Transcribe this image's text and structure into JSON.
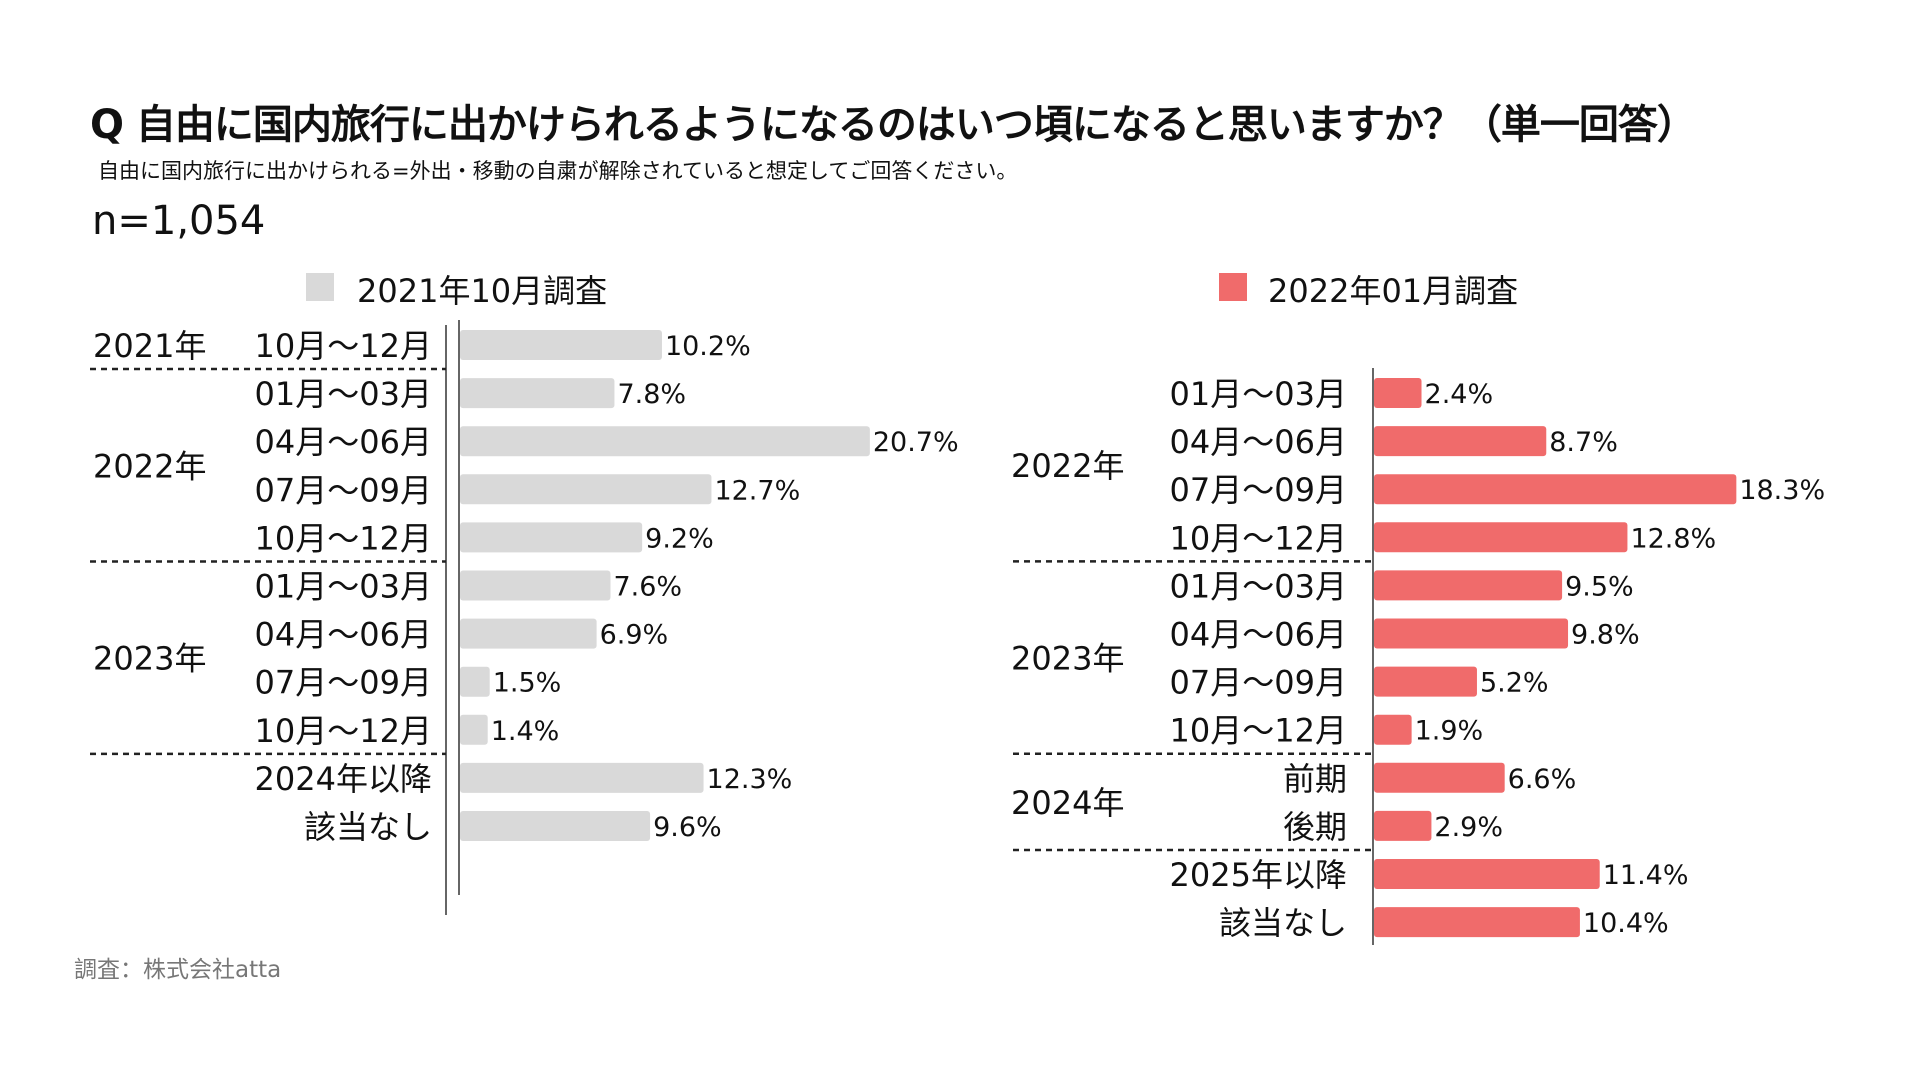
{
  "title": "Q 自由に国内旅行に出かけられるようになるのはいつ頃になると思いますか？（単一回答）",
  "subtitle": "自由に国内旅行に出かけられる=外出・移動の自粛が解除されていると想定してご回答ください。",
  "sample_size": "n=1,054",
  "footer": "調査：株式会社atta",
  "chart_data": [
    {
      "type": "bar",
      "orientation": "horizontal",
      "legend": "2021年10月調査",
      "color": "#d9d9d9",
      "groups": [
        {
          "label": "2021年",
          "rows": [
            0
          ]
        },
        {
          "label": "2022年",
          "rows": [
            1,
            2,
            3,
            4
          ]
        },
        {
          "label": "2023年",
          "rows": [
            5,
            6,
            7,
            8
          ]
        },
        {
          "label": "",
          "rows": [
            9,
            10
          ]
        }
      ],
      "categories": [
        "10月～12月",
        "01月～03月",
        "04月～06月",
        "07月～09月",
        "10月～12月",
        "01月～03月",
        "04月～06月",
        "07月～09月",
        "10月～12月",
        "2024年以降",
        "該当なし"
      ],
      "values": [
        10.2,
        7.8,
        20.7,
        12.7,
        9.2,
        7.6,
        6.9,
        1.5,
        1.4,
        12.3,
        9.6
      ],
      "value_labels": [
        "10.2%",
        "7.8%",
        "20.7%",
        "12.7%",
        "9.2%",
        "7.6%",
        "6.9%",
        "1.5%",
        "1.4%",
        "12.3%",
        "9.6%"
      ]
    },
    {
      "type": "bar",
      "orientation": "horizontal",
      "legend": "2022年01月調査",
      "color": "#f06b6b",
      "groups": [
        {
          "label": "2022年",
          "rows": [
            0,
            1,
            2,
            3
          ]
        },
        {
          "label": "2023年",
          "rows": [
            4,
            5,
            6,
            7
          ]
        },
        {
          "label": "2024年",
          "rows": [
            8,
            9
          ]
        },
        {
          "label": "",
          "rows": [
            10,
            11
          ]
        }
      ],
      "categories": [
        "01月～03月",
        "04月～06月",
        "07月～09月",
        "10月～12月",
        "01月～03月",
        "04月～06月",
        "07月～09月",
        "10月～12月",
        "前期",
        "後期",
        "2025年以降",
        "該当なし"
      ],
      "values": [
        2.4,
        8.7,
        18.3,
        12.8,
        9.5,
        9.8,
        5.2,
        1.9,
        6.6,
        2.9,
        11.4,
        10.4
      ],
      "value_labels": [
        "2.4%",
        "8.7%",
        "18.3%",
        "12.8%",
        "9.5%",
        "9.8%",
        "5.2%",
        "1.9%",
        "6.6%",
        "2.9%",
        "11.4%",
        "10.4%"
      ]
    }
  ]
}
